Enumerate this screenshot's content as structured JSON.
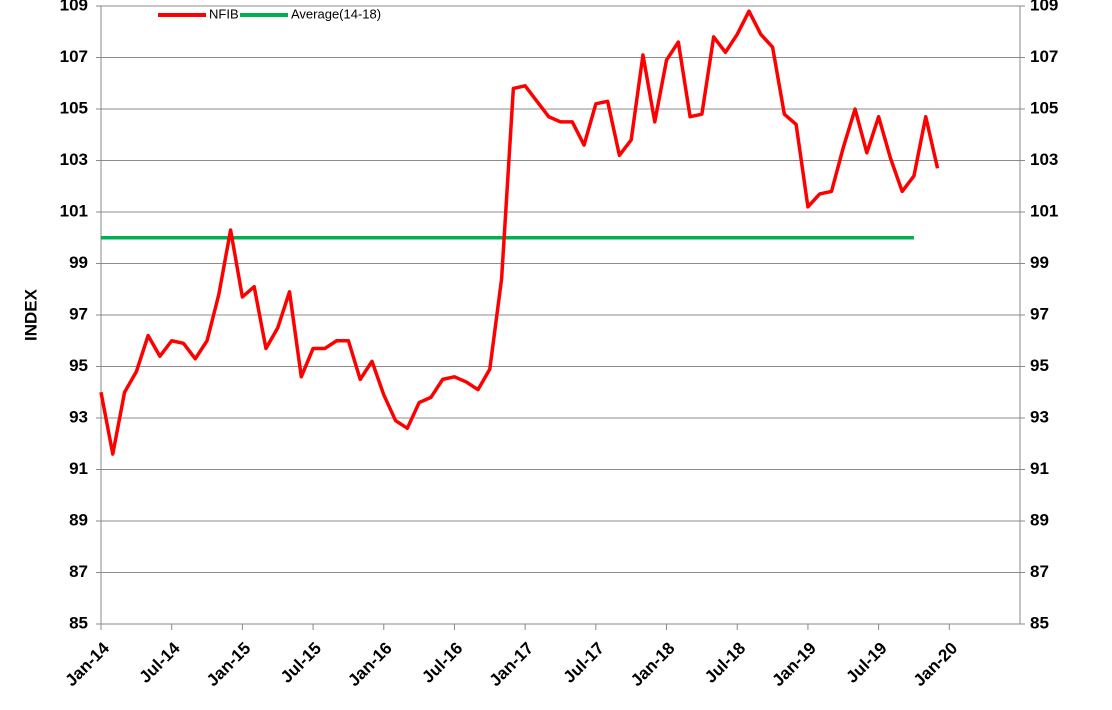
{
  "chart_data": {
    "type": "line",
    "y_label": "INDEX",
    "categories": [
      "Jan-14",
      null,
      null,
      null,
      null,
      null,
      "Jul-14",
      null,
      null,
      null,
      null,
      null,
      "Jan-15",
      null,
      null,
      null,
      null,
      null,
      "Jul-15",
      null,
      null,
      null,
      null,
      null,
      "Jan-16",
      null,
      null,
      null,
      null,
      null,
      "Jul-16",
      null,
      null,
      null,
      null,
      null,
      "Jan-17",
      null,
      null,
      null,
      null,
      null,
      "Jul-17",
      null,
      null,
      null,
      null,
      null,
      "Jan-18",
      null,
      null,
      null,
      null,
      null,
      "Jul-18",
      null,
      null,
      null,
      null,
      null,
      "Jan-19",
      null,
      null,
      null,
      null,
      null,
      "Jul-19",
      null,
      null,
      null,
      null,
      null,
      "Jan-20",
      null,
      null,
      null,
      null,
      null,
      null
    ],
    "series": [
      {
        "name": "NFIB",
        "color": "#ff0000",
        "values": [
          94.0,
          91.6,
          94.0,
          94.8,
          96.2,
          95.4,
          96.0,
          95.9,
          95.3,
          96.0,
          97.8,
          100.3,
          97.7,
          98.1,
          95.7,
          96.5,
          97.9,
          94.6,
          95.7,
          95.7,
          96.0,
          96.0,
          94.5,
          95.2,
          93.9,
          92.9,
          92.6,
          93.6,
          93.8,
          94.5,
          94.6,
          94.4,
          94.1,
          94.9,
          98.4,
          105.8,
          105.9,
          105.3,
          104.7,
          104.5,
          104.5,
          103.6,
          105.2,
          105.3,
          103.2,
          103.8,
          107.1,
          104.5,
          106.9,
          107.6,
          104.7,
          104.8,
          107.8,
          107.2,
          107.9,
          108.8,
          107.9,
          107.4,
          104.8,
          104.4,
          101.2,
          101.7,
          101.8,
          103.5,
          105.0,
          103.3,
          104.7,
          103.1,
          101.8,
          102.4,
          104.7,
          102.7,
          null,
          null,
          null,
          null,
          null,
          null,
          null
        ]
      },
      {
        "name": "Average(14-18)",
        "color": "#00b050",
        "values": [
          100,
          100,
          100,
          100,
          100,
          100,
          100,
          100,
          100,
          100,
          100,
          100,
          100,
          100,
          100,
          100,
          100,
          100,
          100,
          100,
          100,
          100,
          100,
          100,
          100,
          100,
          100,
          100,
          100,
          100,
          100,
          100,
          100,
          100,
          100,
          100,
          100,
          100,
          100,
          100,
          100,
          100,
          100,
          100,
          100,
          100,
          100,
          100,
          100,
          100,
          100,
          100,
          100,
          100,
          100,
          100,
          100,
          100,
          100,
          100,
          100,
          100,
          100,
          100,
          100,
          100,
          100,
          100,
          100,
          100,
          null,
          null,
          null,
          null,
          null,
          null,
          null,
          null,
          null
        ]
      }
    ],
    "ylim": [
      85,
      109
    ],
    "yticks": [
      85,
      87,
      89,
      91,
      93,
      95,
      97,
      99,
      101,
      103,
      105,
      107,
      109
    ],
    "y2lim": [
      85,
      109
    ],
    "y2ticks": [
      85,
      87,
      89,
      91,
      93,
      95,
      97,
      99,
      101,
      103,
      105,
      107,
      109
    ],
    "grid": true
  }
}
